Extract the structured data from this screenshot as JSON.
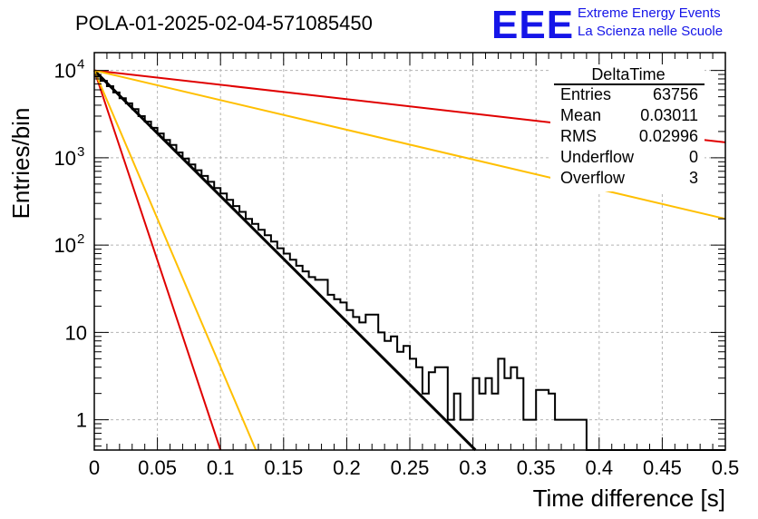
{
  "chart_data": {
    "type": "histogram",
    "title": "POLA-01-2025-02-04-571085450",
    "logo": {
      "text": "EEE",
      "line1": "Extreme Energy Events",
      "line2": "La Scienza nelle Scuole"
    },
    "xlabel": "Time difference [s]",
    "ylabel": "Entries/bin",
    "xlim": [
      0,
      0.5
    ],
    "ylim": [
      0.45,
      16000
    ],
    "yscale": "log",
    "grid": true,
    "x_ticks": [
      {
        "value": 0,
        "label": "0"
      },
      {
        "value": 0.05,
        "label": "0.05"
      },
      {
        "value": 0.1,
        "label": "0.1"
      },
      {
        "value": 0.15,
        "label": "0.15"
      },
      {
        "value": 0.2,
        "label": "0.2"
      },
      {
        "value": 0.25,
        "label": "0.25"
      },
      {
        "value": 0.3,
        "label": "0.3"
      },
      {
        "value": 0.35,
        "label": "0.35"
      },
      {
        "value": 0.4,
        "label": "0.4"
      },
      {
        "value": 0.45,
        "label": "0.45"
      },
      {
        "value": 0.5,
        "label": "0.5"
      }
    ],
    "y_ticks": [
      {
        "value": 1,
        "label": "1"
      },
      {
        "value": 10,
        "label": "10"
      },
      {
        "value": 100,
        "label": "10",
        "sup": "2"
      },
      {
        "value": 1000,
        "label": "10",
        "sup": "3"
      },
      {
        "value": 10000,
        "label": "10",
        "sup": "4"
      }
    ],
    "stats_box": {
      "name": "DeltaTime",
      "rows": [
        {
          "label": "Entries",
          "value": "63756"
        },
        {
          "label": "Mean",
          "value": "0.03011"
        },
        {
          "label": "RMS",
          "value": "0.02996"
        },
        {
          "label": "Underflow",
          "value": "0"
        },
        {
          "label": "Overflow",
          "value": "3"
        }
      ]
    },
    "histogram": {
      "bin_width": 0.005,
      "color": "#000000",
      "counts": [
        8500,
        7600,
        6600,
        5600,
        4800,
        4200,
        3600,
        3000,
        2600,
        2200,
        1900,
        1600,
        1400,
        1150,
        980,
        840,
        720,
        620,
        530,
        450,
        390,
        330,
        280,
        240,
        200,
        175,
        150,
        130,
        110,
        92,
        80,
        68,
        58,
        50,
        43,
        40,
        40,
        27,
        24,
        22,
        18,
        15,
        13,
        16,
        16,
        10,
        8,
        9,
        6,
        7,
        5,
        4,
        2,
        3.5,
        4,
        4,
        1,
        2,
        1,
        1,
        3,
        2,
        3,
        2,
        5,
        3,
        4,
        3,
        1,
        1,
        2.2,
        2.2,
        2,
        1,
        1,
        1,
        1,
        1,
        0,
        0,
        0,
        0,
        0,
        0,
        0,
        0,
        0,
        0,
        0,
        0,
        0,
        0,
        0,
        0,
        0,
        0,
        0,
        0,
        0,
        0
      ]
    },
    "series": [
      {
        "x": [
          0,
          0.302
        ],
        "y": [
          10000,
          0.45
        ],
        "color": "#000000",
        "width": 3
      },
      {
        "x": [
          0,
          0.5
        ],
        "y": [
          10000,
          1500
        ],
        "color": "#e00000",
        "width": 2
      },
      {
        "x": [
          0,
          0.5
        ],
        "y": [
          10000,
          200
        ],
        "color": "#ffbf00",
        "width": 2
      },
      {
        "x": [
          0,
          0.1
        ],
        "y": [
          10000,
          0.45
        ],
        "color": "#e00000",
        "width": 2
      },
      {
        "x": [
          0,
          0.128
        ],
        "y": [
          10000,
          0.45
        ],
        "color": "#ffbf00",
        "width": 2
      }
    ]
  }
}
